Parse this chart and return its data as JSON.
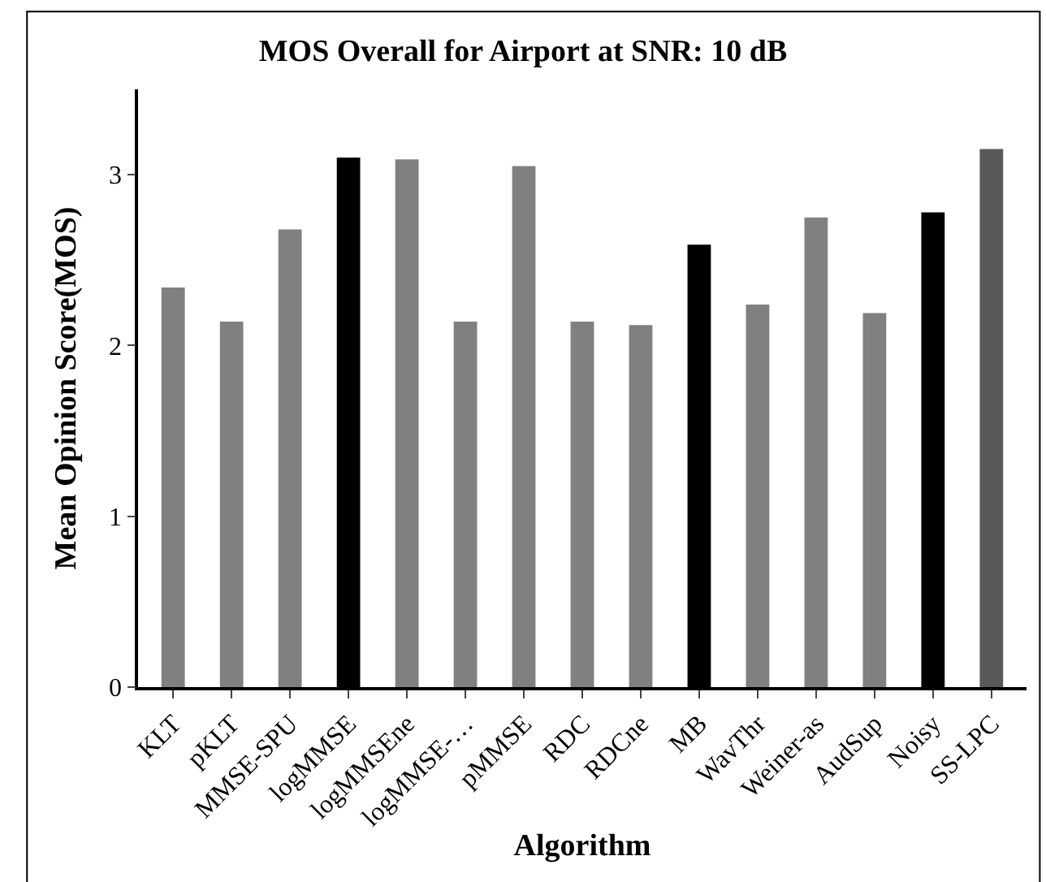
{
  "chart_data": {
    "type": "bar",
    "title": "MOS Overall for Airport at SNR: 10 dB",
    "xlabel": "Algorithm",
    "ylabel": "Mean Opinion Score(MOS)",
    "categories": [
      "KLT",
      "pKLT",
      "MMSE-SPU",
      "logMMSE",
      "logMMSEne",
      "logMMSE-…",
      "pMMSE",
      "RDC",
      "RDCne",
      "MB",
      "WavThr",
      "Weiner-as",
      "AudSup",
      "Noisy",
      "SS-LPC"
    ],
    "values": [
      2.34,
      2.14,
      2.68,
      3.1,
      3.09,
      2.14,
      3.05,
      2.14,
      2.12,
      2.59,
      2.24,
      2.75,
      2.19,
      2.78,
      3.15
    ],
    "colors": [
      "#808080",
      "#808080",
      "#808080",
      "#000000",
      "#808080",
      "#808080",
      "#808080",
      "#808080",
      "#808080",
      "#000000",
      "#808080",
      "#808080",
      "#808080",
      "#000000",
      "#595959"
    ],
    "ylim": [
      0,
      3.5
    ],
    "yticks": [
      0,
      1,
      2,
      3
    ]
  }
}
